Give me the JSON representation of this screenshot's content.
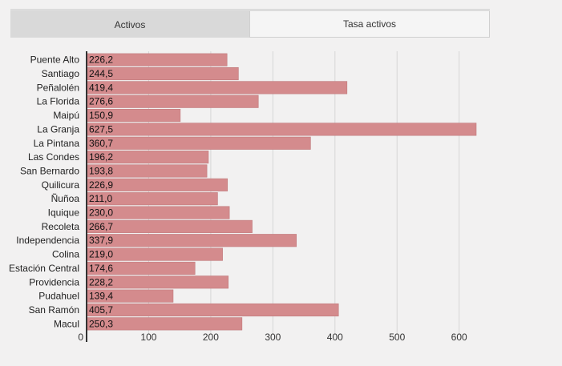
{
  "tabs": [
    {
      "label": "Activos",
      "active": false
    },
    {
      "label": "Tasa activos",
      "active": true
    }
  ],
  "colors": {
    "bar": "#d48b8d",
    "bar_stroke": "#c07a7c",
    "grid": "#d6d6d6",
    "axis": "#333333",
    "background": "#f2f1f1"
  },
  "chart_data": {
    "type": "bar",
    "orientation": "horizontal",
    "title": "",
    "xlabel": "",
    "ylabel": "",
    "categories": [
      "Puente Alto",
      "Santiago",
      "Peñalolén",
      "La Florida",
      "Maipú",
      "La Granja",
      "La Pintana",
      "Las Condes",
      "San Bernardo",
      "Quilicura",
      "Ñuñoa",
      "Iquique",
      "Recoleta",
      "Independencia",
      "Colina",
      "Estación Central",
      "Providencia",
      "Pudahuel",
      "San Ramón",
      "Macul"
    ],
    "values": [
      226.2,
      244.5,
      419.4,
      276.6,
      150.9,
      627.5,
      360.7,
      196.2,
      193.8,
      226.9,
      211.0,
      230.0,
      266.7,
      337.9,
      219.0,
      174.6,
      228.2,
      139.4,
      405.7,
      250.3
    ],
    "value_labels": [
      "226,2",
      "244,5",
      "419,4",
      "276,6",
      "150,9",
      "627,5",
      "360,7",
      "196,2",
      "193,8",
      "226,9",
      "211,0",
      "230,0",
      "266,7",
      "337,9",
      "219,0",
      "174,6",
      "228,2",
      "139,4",
      "405,7",
      "250,3"
    ],
    "xlim": [
      0,
      650
    ],
    "xticks": [
      0,
      100,
      200,
      300,
      400,
      500,
      600
    ],
    "grid": true
  }
}
